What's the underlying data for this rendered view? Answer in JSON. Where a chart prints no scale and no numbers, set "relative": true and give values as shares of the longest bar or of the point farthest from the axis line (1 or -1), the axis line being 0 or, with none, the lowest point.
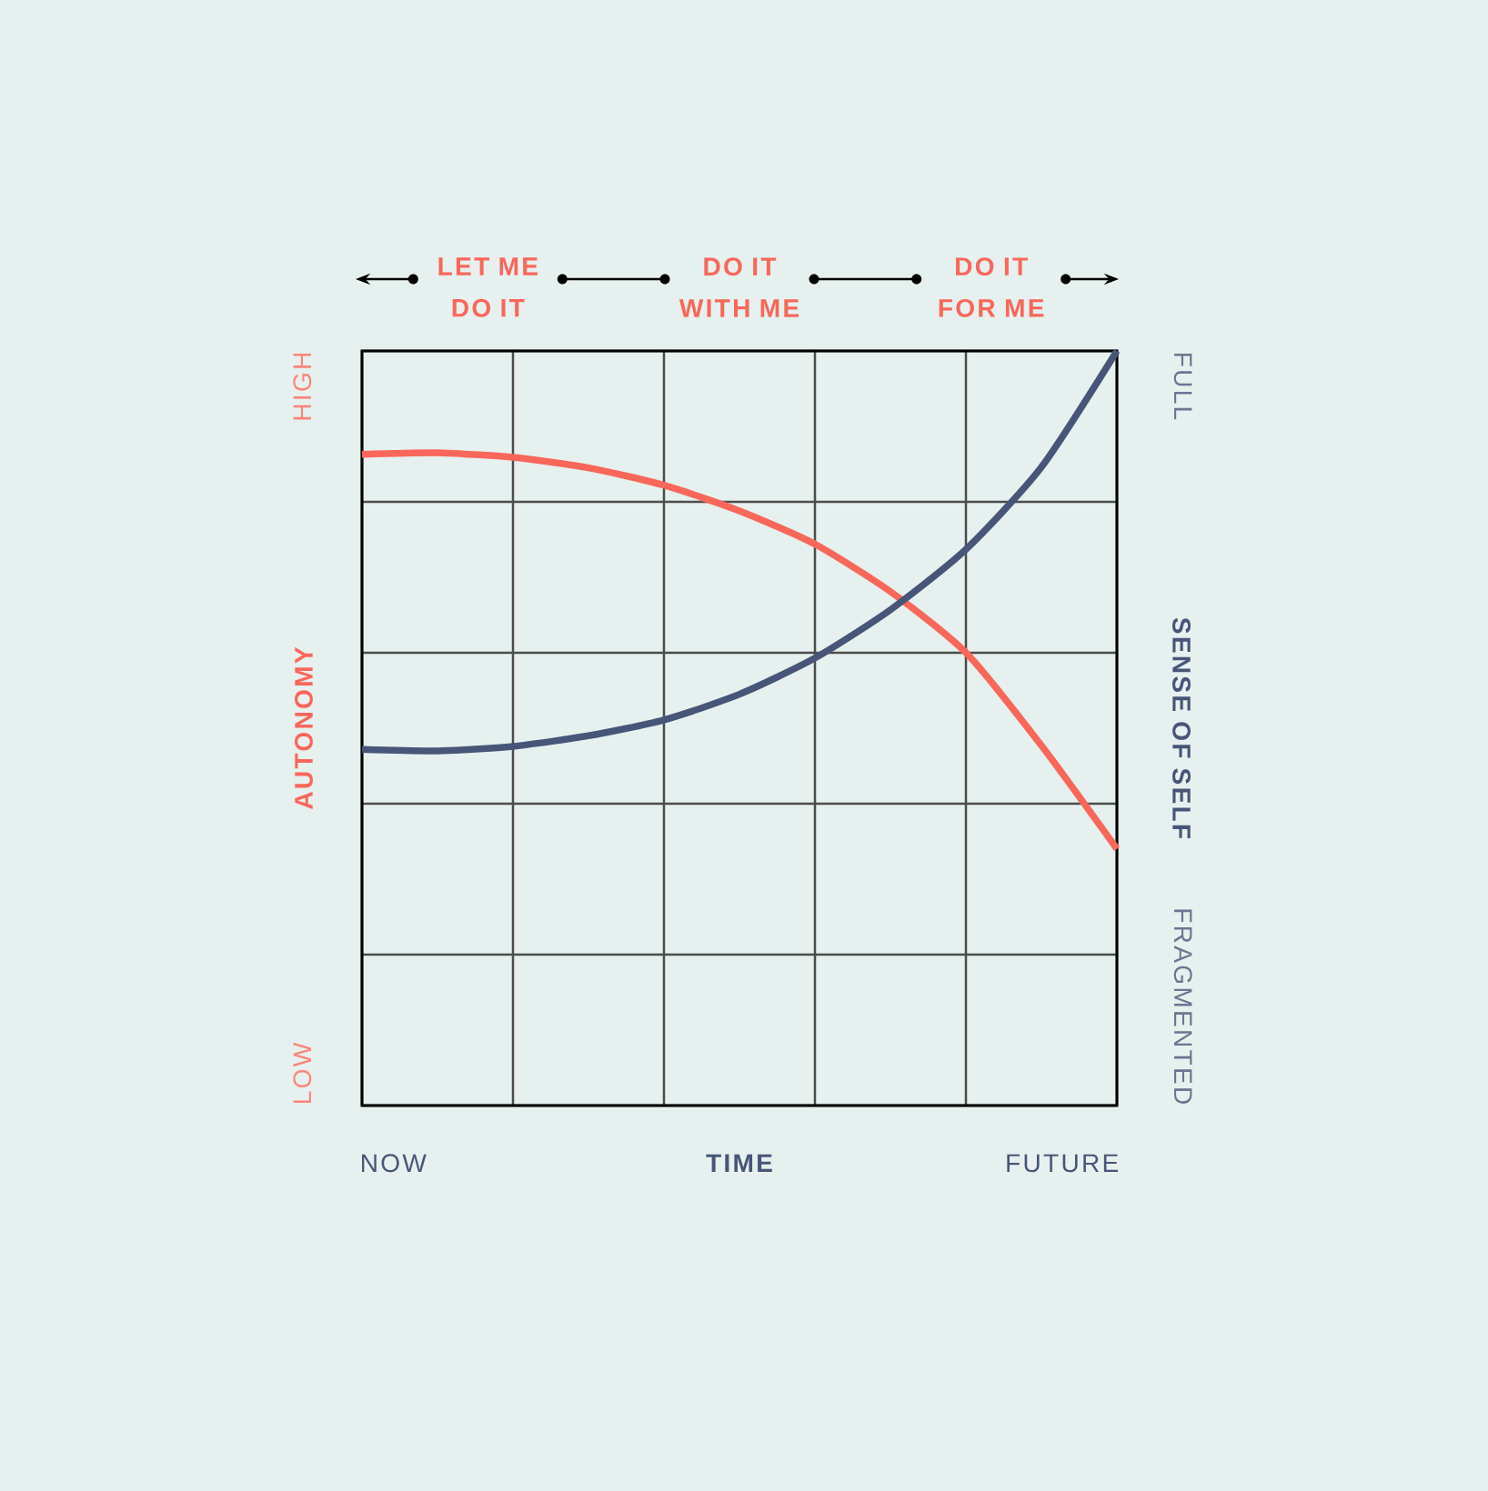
{
  "chart_data": {
    "type": "line",
    "relative": true,
    "xlabel": "TIME",
    "ylabel": "AUTONOMY",
    "y2label": "SENSE OF SELF",
    "categories": [
      null,
      null,
      null,
      null,
      null,
      null,
      null,
      null,
      null,
      null,
      null
    ],
    "grid": true,
    "annotations": [
      "LET ME DO IT",
      "DO IT WITH ME",
      "DO IT FOR ME",
      "HIGH",
      "LOW",
      "FULL",
      "FRAGMENTED",
      "NOW",
      "FUTURE"
    ],
    "series": [
      {
        "color": "#f9665a",
        "values": [
          0.863,
          0.865,
          0.859,
          0.845,
          0.822,
          0.788,
          0.744,
          0.681,
          0.6,
          0.477,
          0.34
        ]
      },
      {
        "color": "#475578",
        "values": [
          0.472,
          0.47,
          0.476,
          0.49,
          0.511,
          0.545,
          0.593,
          0.657,
          0.737,
          0.846,
          1
        ]
      }
    ]
  }
}
